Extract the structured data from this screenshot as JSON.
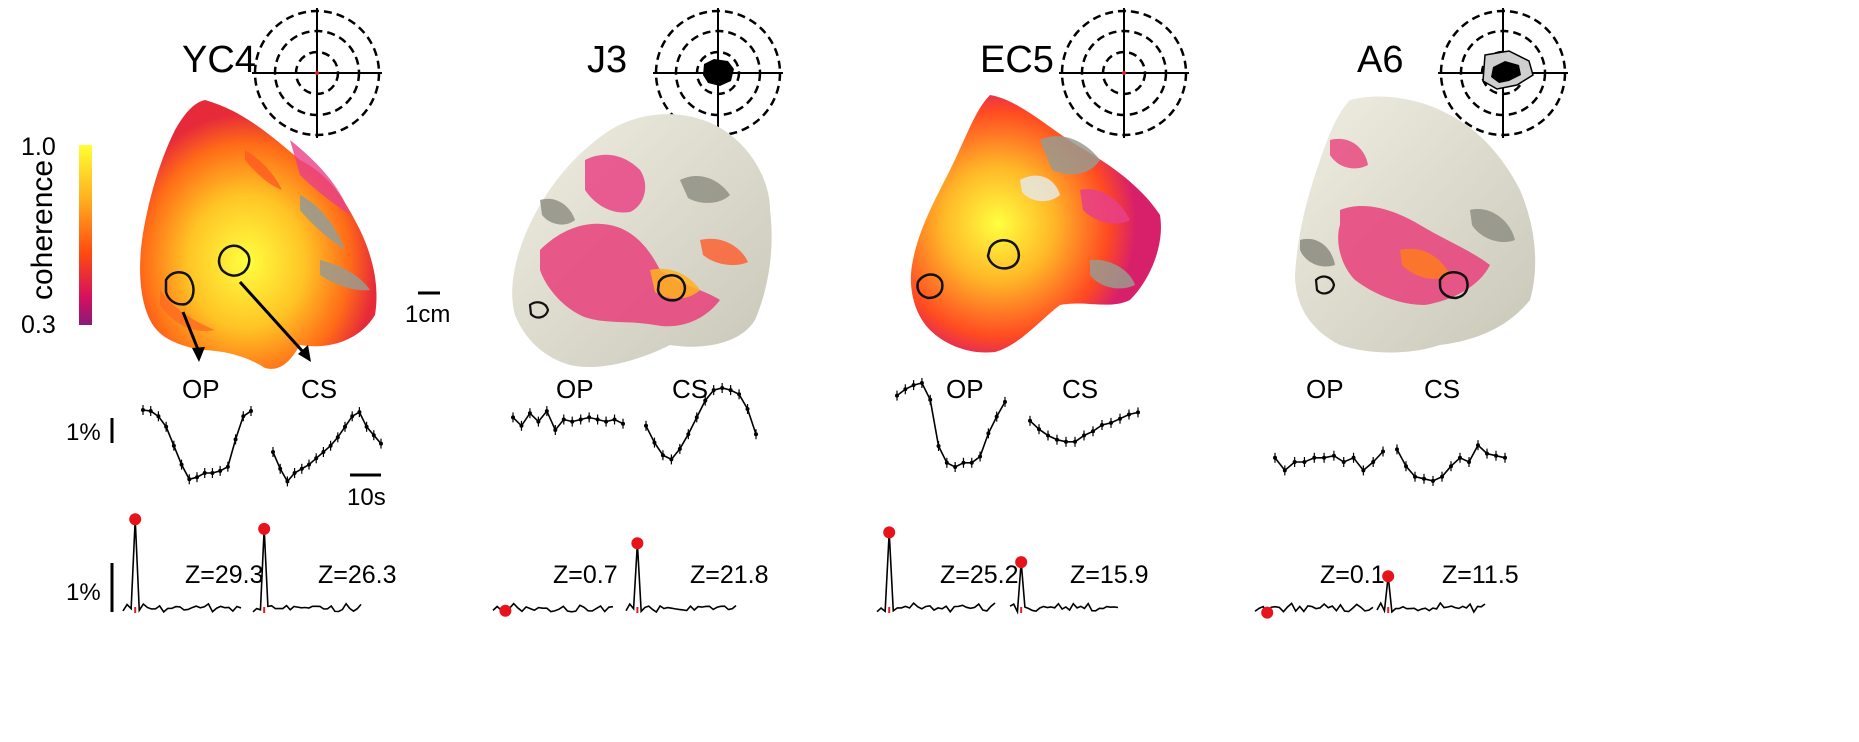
{
  "colorbar": {
    "title": "coherence",
    "max_label": "1.0",
    "min_label": "0.3",
    "colors": [
      "#ffff33",
      "#ffb020",
      "#ff4a10",
      "#d41060",
      "#8a1a78"
    ]
  },
  "scale_bars": {
    "distance": "1cm",
    "time": "10s",
    "percent_upper": "1%",
    "percent_lower": "1%"
  },
  "panels": [
    {
      "name": "YC4",
      "polar_fill": "none",
      "surface_style": "hot",
      "roi_labels": [
        "OP",
        "CS"
      ],
      "op_trace": [
        0,
        0.5,
        3,
        8,
        17,
        26,
        33,
        32,
        30,
        30,
        29,
        27,
        14,
        3,
        0.5
      ],
      "cs_trace": [
        20,
        28,
        34,
        30,
        28,
        26,
        23,
        20,
        17,
        13,
        8,
        3,
        1,
        8,
        12,
        16
      ],
      "z_values": [
        "Z=29.3",
        "Z=26.3"
      ],
      "op_peak": 29.3,
      "cs_peak": 26.3
    },
    {
      "name": "J3",
      "polar_fill": "small",
      "surface_style": "cool",
      "roi_labels": [
        "OP",
        "CS"
      ],
      "op_trace": [
        14,
        18,
        12,
        16,
        11,
        20,
        15,
        16,
        15,
        14,
        15,
        16,
        15,
        17
      ],
      "cs_trace": [
        18,
        26,
        32,
        34,
        29,
        22,
        14,
        6,
        1,
        0,
        1,
        3,
        10,
        22
      ],
      "z_values": [
        "Z=0.7",
        "Z=21.8"
      ],
      "op_peak": 0.7,
      "cs_peak": 21.8
    },
    {
      "name": "EC5",
      "polar_fill": "none",
      "surface_style": "hot-med",
      "roi_labels": [
        "OP",
        "CS"
      ],
      "op_trace": [
        6,
        3,
        1,
        0,
        8,
        30,
        38,
        40,
        38,
        38,
        35,
        24,
        16,
        9
      ],
      "cs_trace": [
        18,
        22,
        25,
        27,
        28,
        28,
        25,
        23,
        20,
        19,
        17,
        15,
        14
      ],
      "z_values": [
        "Z=25.2",
        "Z=15.9"
      ],
      "op_peak": 25.2,
      "cs_peak": 15.9
    },
    {
      "name": "A6",
      "polar_fill": "large",
      "surface_style": "cool-sparse",
      "roi_labels": [
        "OP",
        "CS"
      ],
      "op_trace": [
        18,
        24,
        20,
        20,
        18,
        18,
        17,
        20,
        18,
        24,
        20,
        15
      ],
      "cs_trace": [
        14,
        22,
        27,
        28,
        29,
        27,
        22,
        18,
        20,
        12,
        16,
        17,
        18
      ],
      "z_values": [
        "Z=0.1",
        "Z=11.5"
      ],
      "op_peak": 0.1,
      "cs_peak": 11.5
    }
  ]
}
